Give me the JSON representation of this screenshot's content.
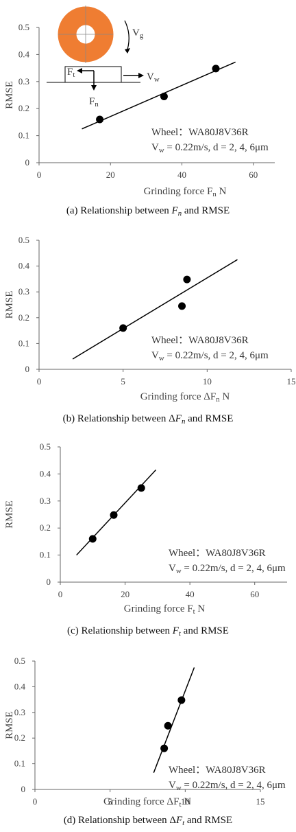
{
  "chart_data": [
    {
      "type": "scatter",
      "color": "#000000",
      "x": [
        17,
        35,
        49.5
      ],
      "y": [
        0.16,
        0.245,
        0.348
      ],
      "trend": {
        "x": [
          12,
          55
        ],
        "y": [
          0.125,
          0.372
        ]
      },
      "xlim": [
        0,
        66
      ],
      "xticks": [
        0,
        20,
        40,
        60
      ],
      "ylim": [
        0,
        0.5
      ],
      "yticks": [
        0,
        0.1,
        0.2,
        0.3,
        0.4,
        0.5
      ],
      "xlabel": [
        "Grinding  force F",
        "n",
        "  N"
      ],
      "ylabel": "RMSE",
      "annotation": {
        "wheel": "Wheel：WA80J8V36R",
        "conditions": [
          "V",
          "w",
          " = 0.22m/s,  d = 2, 4, 6μm"
        ]
      },
      "inset_labels": [
        [
          "V",
          "g"
        ],
        [
          "V",
          "w"
        ],
        [
          "F",
          "t"
        ],
        [
          "F",
          "n"
        ]
      ],
      "caption": [
        "(a) Relationship between ",
        "F",
        "n",
        " and RMSE"
      ]
    },
    {
      "type": "scatter",
      "color": "#000000",
      "x": [
        5,
        8.5,
        8.8
      ],
      "y": [
        0.16,
        0.245,
        0.348
      ],
      "trend": {
        "x": [
          2,
          11.8
        ],
        "y": [
          0.04,
          0.425
        ]
      },
      "xlim": [
        0,
        15
      ],
      "xticks": [
        0,
        5,
        10,
        15
      ],
      "ylim": [
        0,
        0.5
      ],
      "yticks": [
        0,
        0.1,
        0.2,
        0.3,
        0.4,
        0.5
      ],
      "xlabel": [
        "Grinding  force ΔF",
        "n",
        "  N"
      ],
      "ylabel": "RMSE",
      "annotation": {
        "wheel": "Wheel：WA80J8V36R",
        "conditions": [
          "V",
          "w",
          " = 0.22m/s,  d = 2, 4, 6μm"
        ]
      },
      "caption": [
        "(b) Relationship between Δ",
        "F",
        "n",
        " and RMSE"
      ]
    },
    {
      "type": "scatter",
      "color": "#000000",
      "x": [
        10,
        16.5,
        25
      ],
      "y": [
        0.16,
        0.248,
        0.348
      ],
      "trend": {
        "x": [
          5,
          29.5
        ],
        "y": [
          0.1,
          0.415
        ]
      },
      "xlim": [
        0,
        70
      ],
      "xticks": [
        0,
        20,
        40,
        60
      ],
      "ylim": [
        0,
        0.5
      ],
      "yticks": [
        0,
        0.1,
        0.2,
        0.3,
        0.4,
        0.5
      ],
      "xlabel": [
        "Grinding  force F",
        "t",
        " N"
      ],
      "ylabel": "RMSE",
      "annotation": {
        "wheel": "Wheel：WA80J8V36R",
        "conditions": [
          "V",
          "w",
          " = 0.22m/s,  d = 2, 4, 6μm"
        ]
      },
      "caption": [
        "(c) Relationship between ",
        "F",
        "t",
        " and RMSE"
      ]
    },
    {
      "type": "scatter",
      "color": "#000000",
      "x": [
        8.6,
        8.85,
        9.75
      ],
      "y": [
        0.16,
        0.248,
        0.348
      ],
      "trend": {
        "x": [
          7.9,
          10.6
        ],
        "y": [
          0.065,
          0.475
        ]
      },
      "xlim": [
        0,
        15
      ],
      "xticks": [
        0,
        5,
        10,
        15
      ],
      "ylim": [
        0,
        0.5
      ],
      "yticks": [
        0,
        0.1,
        0.2,
        0.3,
        0.4,
        0.5
      ],
      "xlabel": [
        "Grinding  force ΔF",
        "t",
        "  N"
      ],
      "ylabel": "RMSE",
      "annotation": {
        "wheel": "Wheel：WA80J8V36R",
        "conditions": [
          "V",
          "w",
          " = 0.22m/s,  d = 2, 4, 6μm"
        ]
      },
      "caption": [
        "(d) Relationship between Δ",
        "F",
        "t",
        " and RMSE"
      ]
    }
  ]
}
